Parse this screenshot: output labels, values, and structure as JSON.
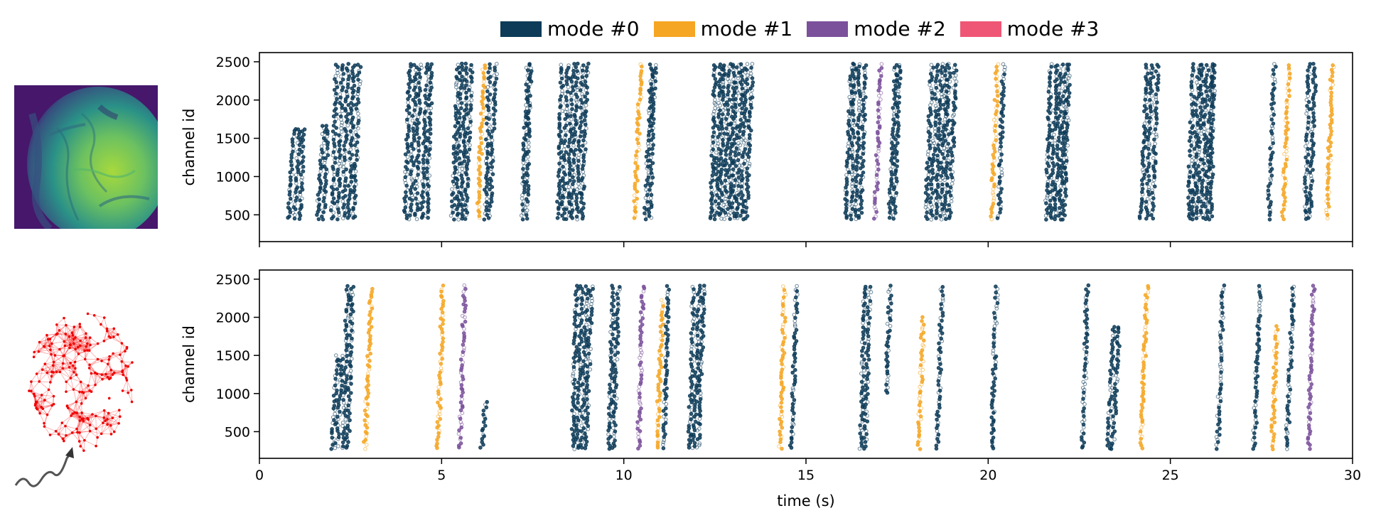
{
  "legend": [
    {
      "label": "mode #0",
      "color": "#0d3b58"
    },
    {
      "label": "mode #1",
      "color": "#f5a623"
    },
    {
      "label": "mode #2",
      "color": "#7b519b"
    },
    {
      "label": "mode #3",
      "color": "#ef5675"
    }
  ],
  "insets": {
    "top": {
      "icon": "brain-imaging-heatmap"
    },
    "bottom": {
      "icon": "network-graph-with-stimulus-wave"
    }
  },
  "chart_data": [
    {
      "type": "scatter",
      "title": "",
      "xlabel": "",
      "ylabel": "channel id",
      "xlim": [
        0,
        30
      ],
      "ylim": [
        150,
        2620
      ],
      "xticks": [
        0,
        5,
        10,
        15,
        20,
        25,
        30
      ],
      "yticks": [
        500,
        1000,
        1500,
        2000,
        2500
      ],
      "xtick_labels_visible": false,
      "channel_range": [
        400,
        2500
      ],
      "events": [
        {
          "t": 0.8,
          "mode": 0,
          "y0": 450,
          "y1": 1650,
          "dt": 0.15,
          "n": 3
        },
        {
          "t": 1.6,
          "mode": 0,
          "y0": 450,
          "y1": 1700,
          "dt": 0.15,
          "n": 2
        },
        {
          "t": 2.0,
          "mode": 0,
          "y0": 450,
          "y1": 2500,
          "dt": 0.15,
          "n": 5
        },
        {
          "t": 4.0,
          "mode": 0,
          "y0": 450,
          "y1": 2500,
          "dt": 0.15,
          "n": 5
        },
        {
          "t": 5.3,
          "mode": 0,
          "y0": 450,
          "y1": 2500,
          "dt": 0.12,
          "n": 4
        },
        {
          "t": 6.0,
          "mode": 1,
          "y0": 450,
          "y1": 2500,
          "dt": 0.1,
          "n": 1
        },
        {
          "t": 6.2,
          "mode": 0,
          "y0": 450,
          "y1": 2500,
          "dt": 0.12,
          "n": 2
        },
        {
          "t": 7.2,
          "mode": 0,
          "y0": 450,
          "y1": 2500,
          "dt": 0.12,
          "n": 2
        },
        {
          "t": 8.2,
          "mode": 0,
          "y0": 450,
          "y1": 2500,
          "dt": 0.13,
          "n": 6
        },
        {
          "t": 10.3,
          "mode": 1,
          "y0": 450,
          "y1": 2500,
          "dt": 0.1,
          "n": 1
        },
        {
          "t": 10.6,
          "mode": 0,
          "y0": 450,
          "y1": 2500,
          "dt": 0.12,
          "n": 2
        },
        {
          "t": 12.4,
          "mode": 0,
          "y0": 450,
          "y1": 2500,
          "dt": 0.12,
          "n": 9
        },
        {
          "t": 16.1,
          "mode": 0,
          "y0": 450,
          "y1": 2500,
          "dt": 0.13,
          "n": 4
        },
        {
          "t": 16.9,
          "mode": 2,
          "y0": 450,
          "y1": 2500,
          "dt": 0.1,
          "n": 1
        },
        {
          "t": 17.3,
          "mode": 0,
          "y0": 450,
          "y1": 2500,
          "dt": 0.12,
          "n": 2
        },
        {
          "t": 18.3,
          "mode": 0,
          "y0": 450,
          "y1": 2500,
          "dt": 0.13,
          "n": 6
        },
        {
          "t": 20.1,
          "mode": 1,
          "y0": 450,
          "y1": 2500,
          "dt": 0.1,
          "n": 1
        },
        {
          "t": 20.3,
          "mode": 0,
          "y0": 450,
          "y1": 2500,
          "dt": 0.12,
          "n": 1
        },
        {
          "t": 21.6,
          "mode": 0,
          "y0": 450,
          "y1": 2500,
          "dt": 0.12,
          "n": 5
        },
        {
          "t": 24.2,
          "mode": 0,
          "y0": 450,
          "y1": 2500,
          "dt": 0.15,
          "n": 3
        },
        {
          "t": 25.5,
          "mode": 0,
          "y0": 450,
          "y1": 2500,
          "dt": 0.12,
          "n": 6
        },
        {
          "t": 27.7,
          "mode": 0,
          "y0": 450,
          "y1": 2500,
          "dt": 0.12,
          "n": 1
        },
        {
          "t": 28.1,
          "mode": 1,
          "y0": 450,
          "y1": 2500,
          "dt": 0.1,
          "n": 1
        },
        {
          "t": 28.7,
          "mode": 0,
          "y0": 450,
          "y1": 2500,
          "dt": 0.12,
          "n": 2
        },
        {
          "t": 29.3,
          "mode": 1,
          "y0": 450,
          "y1": 2500,
          "dt": 0.1,
          "n": 1
        }
      ]
    },
    {
      "type": "scatter",
      "title": "",
      "xlabel": "time (s)",
      "ylabel": "channel id",
      "xlim": [
        0,
        30
      ],
      "ylim": [
        150,
        2620
      ],
      "xticks": [
        0,
        5,
        10,
        15,
        20,
        25,
        30
      ],
      "yticks": [
        500,
        1000,
        1500,
        2000,
        2500
      ],
      "xtick_labels_visible": true,
      "channel_range": [
        280,
        2440
      ],
      "events": [
        {
          "t": 2.0,
          "mode": 0,
          "y0": 280,
          "y1": 1500,
          "dt": 0.12,
          "n": 2
        },
        {
          "t": 2.3,
          "mode": 0,
          "y0": 280,
          "y1": 2440,
          "dt": 0.12,
          "n": 2
        },
        {
          "t": 2.9,
          "mode": 1,
          "y0": 280,
          "y1": 2400,
          "dt": 0.1,
          "n": 1
        },
        {
          "t": 4.9,
          "mode": 1,
          "y0": 280,
          "y1": 2440,
          "dt": 0.1,
          "n": 1
        },
        {
          "t": 5.5,
          "mode": 2,
          "y0": 280,
          "y1": 2440,
          "dt": 0.1,
          "n": 1
        },
        {
          "t": 6.1,
          "mode": 0,
          "y0": 280,
          "y1": 900,
          "dt": 0.1,
          "n": 1
        },
        {
          "t": 8.6,
          "mode": 0,
          "y0": 280,
          "y1": 2440,
          "dt": 0.12,
          "n": 4
        },
        {
          "t": 9.6,
          "mode": 0,
          "y0": 280,
          "y1": 2440,
          "dt": 0.12,
          "n": 2
        },
        {
          "t": 10.4,
          "mode": 2,
          "y0": 280,
          "y1": 2440,
          "dt": 0.1,
          "n": 1
        },
        {
          "t": 10.9,
          "mode": 1,
          "y0": 280,
          "y1": 2240,
          "dt": 0.1,
          "n": 1
        },
        {
          "t": 11.1,
          "mode": 0,
          "y0": 280,
          "y1": 2440,
          "dt": 0.12,
          "n": 1
        },
        {
          "t": 11.8,
          "mode": 0,
          "y0": 280,
          "y1": 2440,
          "dt": 0.12,
          "n": 3
        },
        {
          "t": 14.3,
          "mode": 1,
          "y0": 280,
          "y1": 2440,
          "dt": 0.1,
          "n": 1
        },
        {
          "t": 14.6,
          "mode": 0,
          "y0": 280,
          "y1": 2440,
          "dt": 0.12,
          "n": 1
        },
        {
          "t": 16.5,
          "mode": 0,
          "y0": 280,
          "y1": 2440,
          "dt": 0.12,
          "n": 2
        },
        {
          "t": 17.2,
          "mode": 0,
          "y0": 1000,
          "y1": 2440,
          "dt": 0.1,
          "n": 1
        },
        {
          "t": 18.1,
          "mode": 1,
          "y0": 280,
          "y1": 2000,
          "dt": 0.1,
          "n": 1
        },
        {
          "t": 18.6,
          "mode": 0,
          "y0": 280,
          "y1": 2440,
          "dt": 0.12,
          "n": 1
        },
        {
          "t": 20.1,
          "mode": 0,
          "y0": 280,
          "y1": 2440,
          "dt": 0.12,
          "n": 1
        },
        {
          "t": 22.6,
          "mode": 0,
          "y0": 280,
          "y1": 2440,
          "dt": 0.12,
          "n": 1
        },
        {
          "t": 23.3,
          "mode": 0,
          "y0": 280,
          "y1": 1900,
          "dt": 0.12,
          "n": 2
        },
        {
          "t": 24.2,
          "mode": 1,
          "y0": 280,
          "y1": 2440,
          "dt": 0.1,
          "n": 1
        },
        {
          "t": 26.3,
          "mode": 0,
          "y0": 280,
          "y1": 2440,
          "dt": 0.12,
          "n": 1
        },
        {
          "t": 27.3,
          "mode": 0,
          "y0": 280,
          "y1": 2440,
          "dt": 0.12,
          "n": 1
        },
        {
          "t": 27.8,
          "mode": 1,
          "y0": 280,
          "y1": 1900,
          "dt": 0.1,
          "n": 1
        },
        {
          "t": 28.2,
          "mode": 0,
          "y0": 280,
          "y1": 2440,
          "dt": 0.12,
          "n": 1
        },
        {
          "t": 28.8,
          "mode": 2,
          "y0": 280,
          "y1": 2440,
          "dt": 0.1,
          "n": 1
        }
      ]
    }
  ]
}
